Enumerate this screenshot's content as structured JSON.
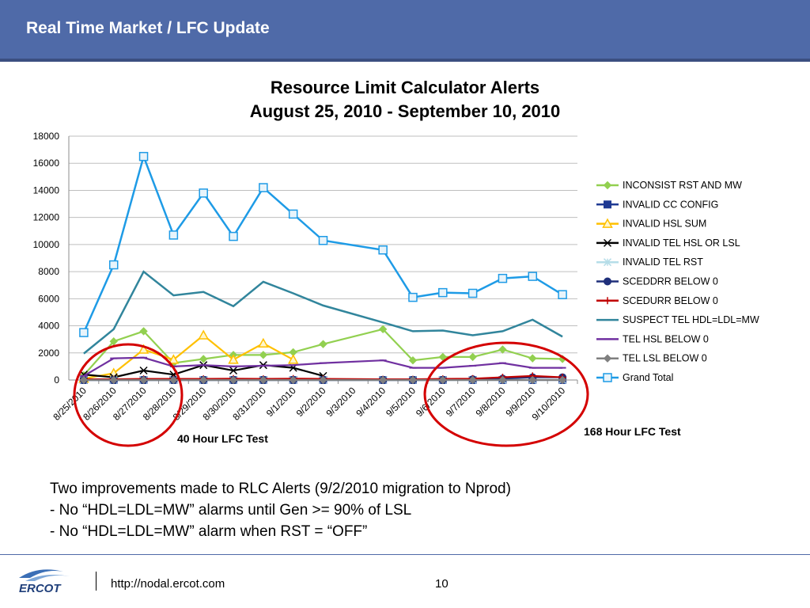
{
  "header": {
    "title": "Real Time Market / LFC Update",
    "bar_color": "#4f6aa8"
  },
  "chart_data": {
    "type": "line",
    "title": "Resource Limit Calculator Alerts",
    "subtitle": "August 25, 2010 - September 10, 2010",
    "xlabel": "",
    "ylabel": "",
    "ylim": [
      0,
      18000
    ],
    "yticks": [
      "0",
      "2000",
      "4000",
      "6000",
      "8000",
      "10000",
      "12000",
      "14000",
      "16000",
      "18000"
    ],
    "grid": true,
    "legend_position": "right",
    "categories": [
      "8/25/2010",
      "8/26/2010",
      "8/27/2010",
      "8/28/2010",
      "8/29/2010",
      "8/30/2010",
      "8/31/2010",
      "9/1/2010",
      "9/2/2010",
      "9/3/2010",
      "9/4/2010",
      "9/5/2010",
      "9/6/2010",
      "9/7/2010",
      "9/8/2010",
      "9/9/2010",
      "9/10/2010"
    ],
    "series": [
      {
        "name": "INCONSIST RST AND MW",
        "color": "#92d050",
        "marker": "diamond",
        "values": [
          350,
          2850,
          3600,
          1250,
          1550,
          1850,
          1850,
          2050,
          2650,
          null,
          3750,
          1450,
          1700,
          1700,
          2250,
          1600,
          1550
        ]
      },
      {
        "name": "INVALID CC CONFIG",
        "color": "#1f3a93",
        "marker": "square",
        "values": [
          0,
          0,
          0,
          0,
          0,
          0,
          0,
          0,
          0,
          null,
          0,
          0,
          0,
          0,
          0,
          0,
          0
        ]
      },
      {
        "name": "INVALID HSL SUM",
        "color": "#ffc000",
        "marker": "triangle",
        "values": [
          100,
          500,
          2250,
          1500,
          3300,
          1500,
          2700,
          1500,
          null,
          null,
          null,
          null,
          null,
          null,
          null,
          null,
          null
        ]
      },
      {
        "name": "INVALID TEL HSL OR LSL",
        "color": "#000000",
        "marker": "x",
        "values": [
          400,
          200,
          700,
          400,
          1100,
          700,
          1100,
          900,
          300,
          null,
          null,
          null,
          null,
          null,
          null,
          null,
          null
        ]
      },
      {
        "name": "INVALID TEL RST",
        "color": "#b6dde8",
        "marker": "asterisk",
        "values": [
          0,
          0,
          0,
          0,
          0,
          0,
          0,
          0,
          0,
          null,
          0,
          0,
          0,
          0,
          0,
          0,
          0
        ]
      },
      {
        "name": "SCEDDRR BELOW 0",
        "color": "#1f2f7a",
        "marker": "circle",
        "values": [
          0,
          0,
          0,
          0,
          0,
          0,
          0,
          0,
          0,
          null,
          0,
          0,
          0,
          50,
          100,
          200,
          200
        ]
      },
      {
        "name": "SCEDURR BELOW 0",
        "color": "#c00000",
        "marker": "plus",
        "values": [
          50,
          50,
          80,
          80,
          80,
          100,
          80,
          100,
          80,
          null,
          50,
          50,
          80,
          100,
          200,
          300,
          200
        ]
      },
      {
        "name": "SUSPECT TEL HDL=LDL=MW",
        "color": "#31859c",
        "marker": "none",
        "values": [
          1950,
          3750,
          8000,
          6250,
          6500,
          5450,
          7250,
          6400,
          5500,
          null,
          4250,
          3600,
          3650,
          3300,
          3600,
          4450,
          3200
        ]
      },
      {
        "name": "TEL HSL BELOW 0",
        "color": "#7030a0",
        "marker": "dash",
        "values": [
          300,
          1600,
          1650,
          1000,
          1100,
          1000,
          1050,
          1100,
          1250,
          null,
          1450,
          900,
          900,
          1050,
          1250,
          900,
          900
        ]
      },
      {
        "name": "TEL LSL BELOW 0",
        "color": "#7f7f7f",
        "marker": "diamond",
        "values": [
          0,
          0,
          0,
          0,
          0,
          0,
          0,
          0,
          0,
          null,
          0,
          0,
          0,
          0,
          0,
          0,
          0
        ]
      },
      {
        "name": "Grand Total",
        "color": "#1e9be6",
        "marker": "square-open",
        "values": [
          3500,
          8500,
          16500,
          10700,
          13800,
          10600,
          14200,
          12250,
          10300,
          null,
          9600,
          6100,
          6450,
          6400,
          7500,
          7650,
          6300
        ]
      }
    ]
  },
  "callouts": {
    "left": "40 Hour LFC Test",
    "right": "168 Hour LFC Test"
  },
  "notes": {
    "line1": "Two improvements made to RLC Alerts (9/2/2010 migration to Nprod)",
    "line2": "- No “HDL=LDL=MW” alarms until Gen >= 90% of LSL",
    "line3": "- No “HDL=LDL=MW” alarm when RST = “OFF”"
  },
  "footer": {
    "logo_text": "ERCOT",
    "url": "http://nodal.ercot.com",
    "page_number": "10"
  }
}
